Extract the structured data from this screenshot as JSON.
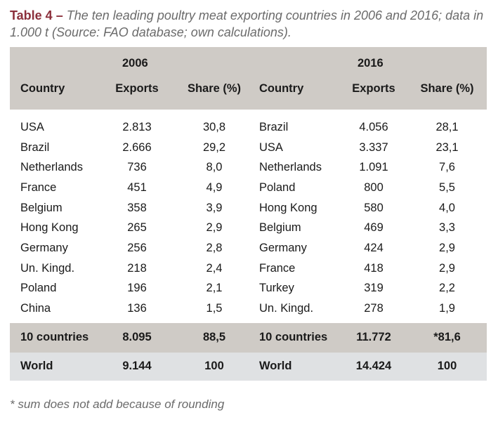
{
  "caption": {
    "label": "Table 4 –",
    "text": "The ten leading poultry meat exporting countries in 2006 and 2016; data in 1.000 t (Source: FAO database; own calculations)."
  },
  "header": {
    "year_2006": "2006",
    "year_2016": "2016",
    "country": "Country",
    "exports": "Exports",
    "share": "Share (%)"
  },
  "rows": [
    {
      "c2006": "USA",
      "e2006": "2.813",
      "s2006": "30,8",
      "c2016": "Brazil",
      "e2016": "4.056",
      "s2016": "28,1"
    },
    {
      "c2006": "Brazil",
      "e2006": "2.666",
      "s2006": "29,2",
      "c2016": "USA",
      "e2016": "3.337",
      "s2016": "23,1"
    },
    {
      "c2006": "Netherlands",
      "e2006": "736",
      "s2006": "8,0",
      "c2016": "Netherlands",
      "e2016": "1.091",
      "s2016": "7,6"
    },
    {
      "c2006": "France",
      "e2006": "451",
      "s2006": "4,9",
      "c2016": "Poland",
      "e2016": "800",
      "s2016": "5,5"
    },
    {
      "c2006": "Belgium",
      "e2006": "358",
      "s2006": "3,9",
      "c2016": "Hong Kong",
      "e2016": "580",
      "s2016": "4,0"
    },
    {
      "c2006": "Hong Kong",
      "e2006": "265",
      "s2006": "2,9",
      "c2016": "Belgium",
      "e2016": "469",
      "s2016": "3,3"
    },
    {
      "c2006": "Germany",
      "e2006": "256",
      "s2006": "2,8",
      "c2016": "Germany",
      "e2016": "424",
      "s2016": "2,9"
    },
    {
      "c2006": "Un. Kingd.",
      "e2006": "218",
      "s2006": "2,4",
      "c2016": "France",
      "e2016": "418",
      "s2016": "2,9"
    },
    {
      "c2006": "Poland",
      "e2006": "196",
      "s2006": "2,1",
      "c2016": "Turkey",
      "e2016": "319",
      "s2016": "2,2"
    },
    {
      "c2006": "China",
      "e2006": "136",
      "s2006": "1,5",
      "c2016": "Un. Kingd.",
      "e2016": "278",
      "s2016": "1,9"
    }
  ],
  "total": {
    "c2006": "10 countries",
    "e2006": "8.095",
    "s2006": "88,5",
    "c2016": "10 countries",
    "e2016": "11.772",
    "s2016": "*81,6"
  },
  "world": {
    "c2006": "World",
    "e2006": "9.144",
    "s2006": "100",
    "c2016": "World",
    "e2016": "14.424",
    "s2016": "100"
  },
  "footnote": "* sum does not add because of rounding",
  "colors": {
    "header_bg": "#cfcbc6",
    "world_bg": "#dfe1e3",
    "label": "#8b2f3b"
  }
}
